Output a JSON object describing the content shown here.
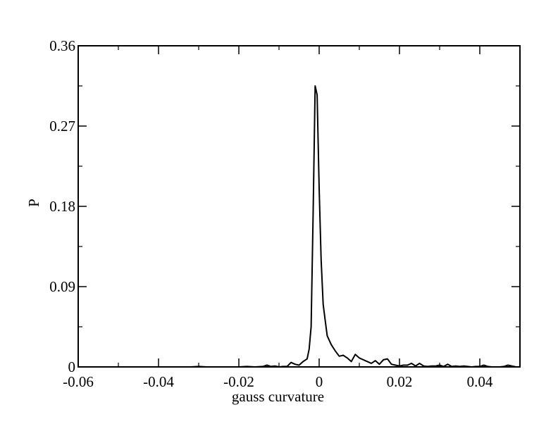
{
  "chart_data": {
    "type": "line",
    "title": "",
    "xlabel": "gauss curvature",
    "ylabel": "P",
    "xlim": [
      -0.06,
      0.05
    ],
    "ylim": [
      0,
      0.36
    ],
    "x_ticks": [
      -0.06,
      -0.04,
      -0.02,
      0,
      0.02,
      0.04
    ],
    "x_tick_labels": [
      "-0.06",
      "-0.04",
      "-0.02",
      "0",
      "0.02",
      "0.04"
    ],
    "y_ticks": [
      0,
      0.09,
      0.18,
      0.27,
      0.36
    ],
    "y_tick_labels": [
      "0",
      "0.09",
      "0.18",
      "0.27",
      "0.36"
    ],
    "grid": false,
    "series": [
      {
        "color": "#000000",
        "x": [
          -0.032,
          -0.03,
          -0.028,
          -0.026,
          -0.024,
          -0.022,
          -0.02,
          -0.018,
          -0.016,
          -0.014,
          -0.013,
          -0.012,
          -0.011,
          -0.01,
          -0.009,
          -0.008,
          -0.007,
          -0.006,
          -0.005,
          -0.004,
          -0.003,
          -0.0025,
          -0.002,
          -0.0015,
          -0.001,
          -0.0005,
          0.0,
          0.0005,
          0.001,
          0.0015,
          0.002,
          0.003,
          0.004,
          0.005,
          0.006,
          0.007,
          0.008,
          0.009,
          0.01,
          0.011,
          0.012,
          0.013,
          0.014,
          0.015,
          0.016,
          0.017,
          0.018,
          0.019,
          0.02,
          0.021,
          0.022,
          0.023,
          0.024,
          0.025,
          0.026,
          0.027,
          0.028,
          0.029,
          0.03,
          0.031,
          0.032,
          0.033,
          0.034,
          0.035,
          0.036,
          0.037,
          0.038,
          0.039,
          0.04,
          0.041,
          0.042,
          0.043,
          0.044,
          0.045,
          0.046,
          0.047,
          0.048,
          0.049
        ],
        "y": [
          0.0,
          0.0005,
          0.0,
          0.0,
          0.0,
          0.0,
          0.0,
          0.0005,
          0.0,
          0.0005,
          0.002,
          0.0005,
          0.001,
          0.0,
          0.0005,
          0.0005,
          0.005,
          0.003,
          0.002,
          0.006,
          0.009,
          0.02,
          0.045,
          0.17,
          0.315,
          0.305,
          0.2,
          0.12,
          0.07,
          0.052,
          0.035,
          0.025,
          0.018,
          0.012,
          0.013,
          0.01,
          0.006,
          0.014,
          0.01,
          0.008,
          0.006,
          0.004,
          0.007,
          0.003,
          0.008,
          0.009,
          0.003,
          0.002,
          0.001,
          0.002,
          0.002,
          0.004,
          0.001,
          0.004,
          0.001,
          0.0005,
          0.001,
          0.001,
          0.002,
          0.0005,
          0.003,
          0.0005,
          0.001,
          0.0005,
          0.001,
          0.0005,
          0.0,
          0.0005,
          0.0005,
          0.002,
          0.0005,
          0.0,
          0.0,
          0.0,
          0.0005,
          0.002,
          0.001,
          0.0
        ]
      }
    ]
  }
}
